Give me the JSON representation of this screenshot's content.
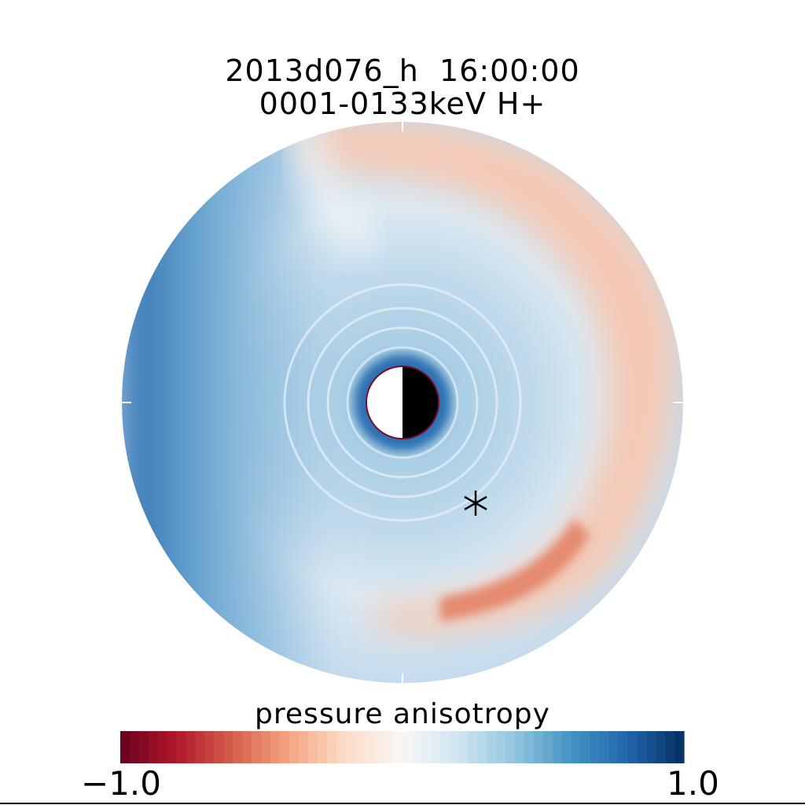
{
  "chart_data": {
    "type": "heatmap",
    "title_line1": "2013d076_h  16:00:00",
    "title_line2": "0001-0133keV H+",
    "colorbar": {
      "label": "pressure anisotropy",
      "min": -1.0,
      "max": 1.0,
      "min_label": "-1.0",
      "max_label": "1.0",
      "colormap": "RdBu",
      "levels": 60,
      "colors": [
        "#67001f",
        "#b2182b",
        "#d6604d",
        "#f4a582",
        "#fddbc7",
        "#f7f7f7",
        "#d1e5f0",
        "#92c5de",
        "#4393c3",
        "#2166ac",
        "#053061"
      ]
    },
    "projection": "polar equatorial plane",
    "features": {
      "planet": "day-night shaded central body",
      "marker": "asterisk"
    }
  }
}
